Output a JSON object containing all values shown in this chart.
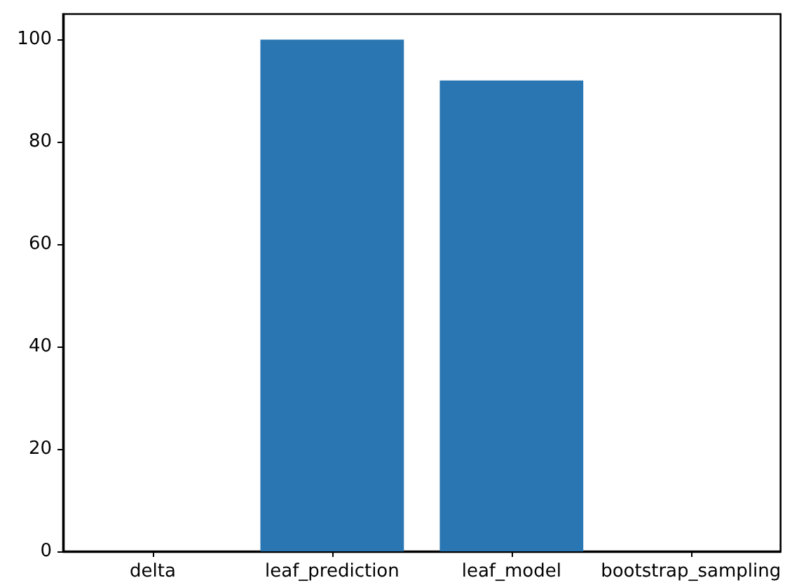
{
  "chart_data": {
    "type": "bar",
    "categories": [
      "delta",
      "leaf_prediction",
      "leaf_model",
      "bootstrap_sampling"
    ],
    "values": [
      0,
      100,
      92,
      0
    ],
    "color": "#2976b3",
    "ylim": [
      0,
      105
    ],
    "yticks": [
      0,
      20,
      40,
      60,
      80,
      100
    ],
    "grid": false
  }
}
